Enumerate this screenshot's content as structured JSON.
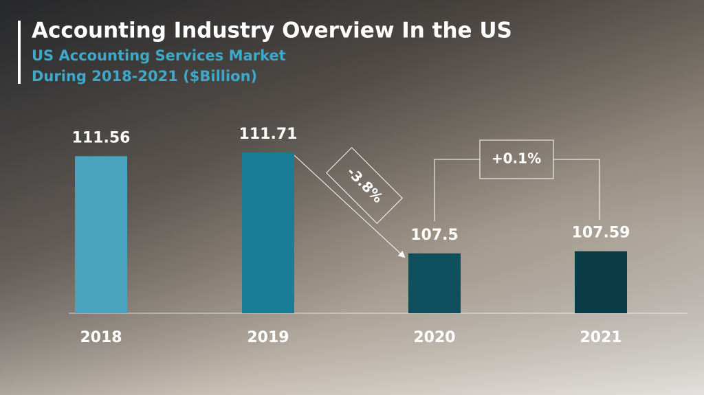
{
  "chart_data": {
    "type": "bar",
    "title": "Accounting Industry Overview In the US",
    "subtitle": "US Accounting Services Market During 2018-2021 ($Billion)",
    "categories": [
      "2018",
      "2019",
      "2020",
      "2021"
    ],
    "values": [
      111.56,
      111.71,
      107.5,
      107.59
    ],
    "colors": [
      "#4aa3bf",
      "#1a7d98",
      "#0f4e5c",
      "#0c3b48"
    ],
    "ylim": [
      105,
      112
    ],
    "annotations": [
      "-3.8%",
      "+0.1%"
    ]
  }
}
